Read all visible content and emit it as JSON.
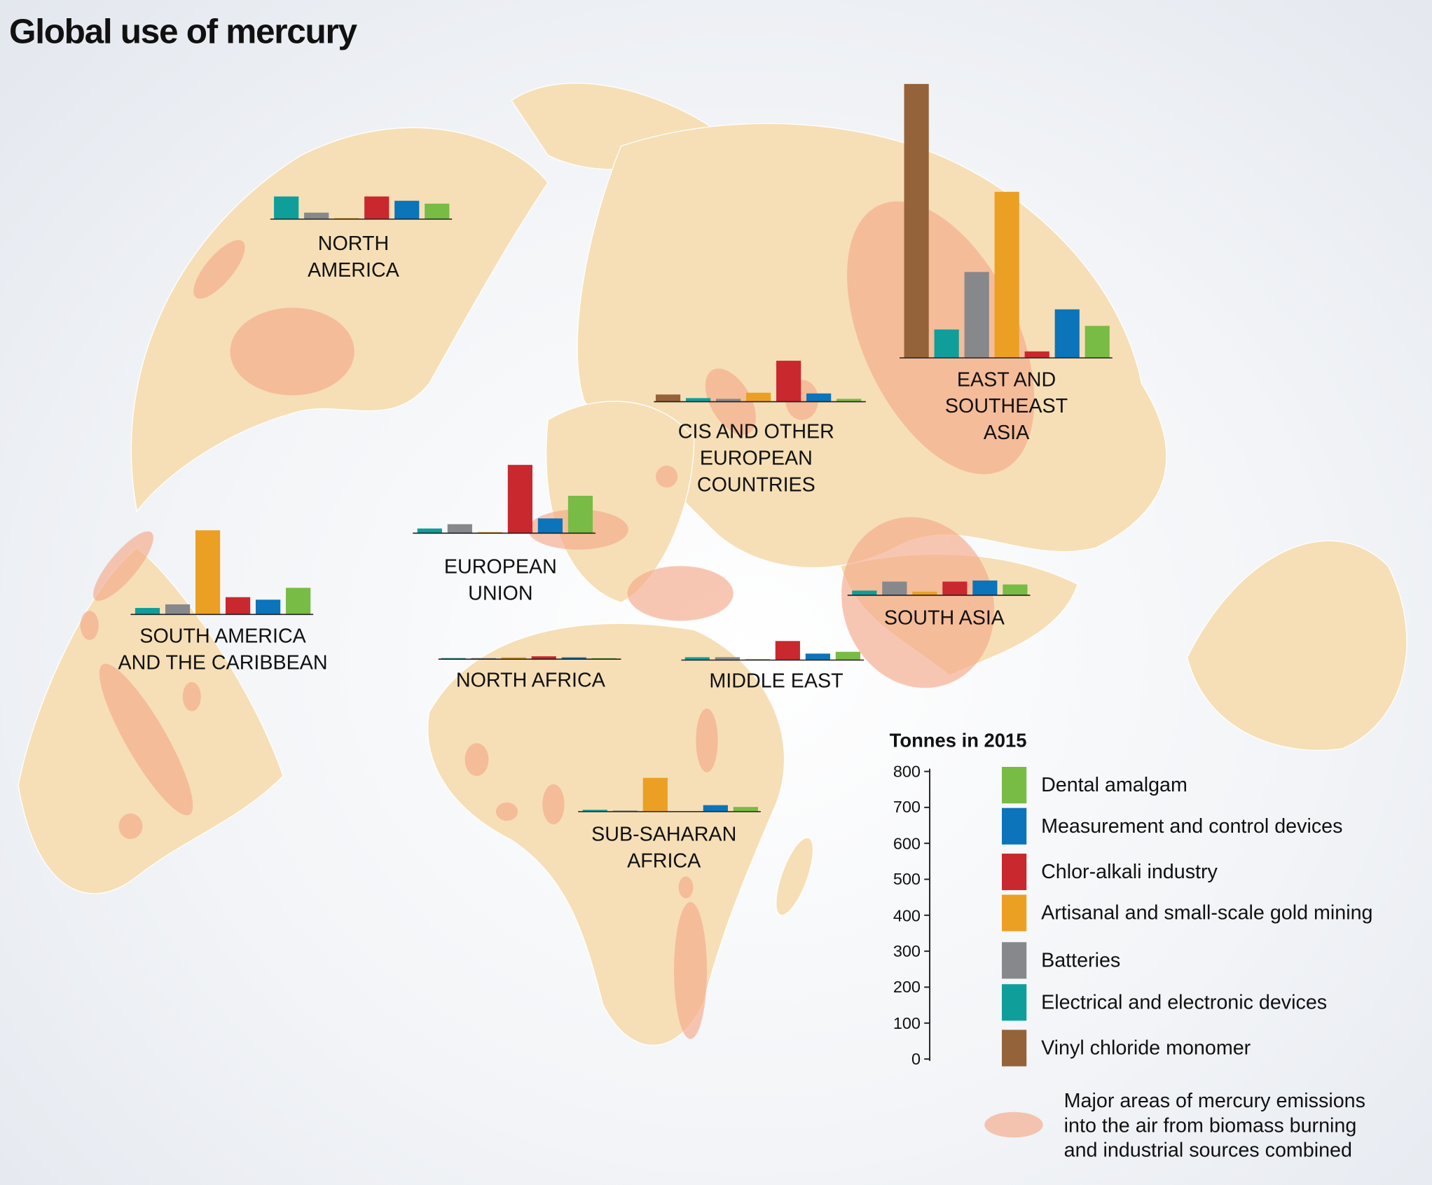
{
  "chart_data": {
    "type": "bar",
    "title": "Global use of mercury",
    "y_label": "Tonnes in 2015",
    "ylim": [
      0,
      800
    ],
    "yticks": [
      0,
      100,
      200,
      300,
      400,
      500,
      600,
      700,
      800
    ],
    "categories": [
      "NORTH\nAMERICA",
      "SOUTH AMERICA\nAND THE CARIBBEAN",
      "EUROPEAN\nUNION",
      "CIS AND OTHER\nEUROPEAN\nCOUNTRIES",
      "NORTH AFRICA",
      "SUB-SAHARAN\nAFRICA",
      "MIDDLE EAST",
      "SOUTH ASIA",
      "EAST AND\nSOUTHEAST\nASIA"
    ],
    "series": [
      {
        "name": "Vinyl chloride monomer",
        "color": "#94633a",
        "values": [
          null,
          null,
          null,
          20,
          null,
          null,
          null,
          null,
          762
        ]
      },
      {
        "name": "Electrical and electronic devices",
        "color": "#0f9e9a",
        "values": [
          63,
          18,
          13,
          10,
          3,
          5,
          8,
          13,
          79
        ]
      },
      {
        "name": "Batteries",
        "color": "#87888b",
        "values": [
          18,
          28,
          25,
          8,
          3,
          3,
          8,
          38,
          239
        ]
      },
      {
        "name": "Artisanal and small-scale gold mining",
        "color": "#eba024",
        "values": [
          3,
          234,
          3,
          25,
          5,
          94,
          3,
          10,
          462
        ]
      },
      {
        "name": "Chlor-alkali industry",
        "color": "#c8282e",
        "values": [
          63,
          48,
          190,
          114,
          8,
          0,
          53,
          38,
          18
        ]
      },
      {
        "name": "Measurement and control devices",
        "color": "#0b74ba",
        "values": [
          51,
          41,
          41,
          23,
          5,
          18,
          18,
          41,
          135
        ]
      },
      {
        "name": "Dental amalgam",
        "color": "#78bb45",
        "values": [
          43,
          74,
          104,
          8,
          3,
          13,
          23,
          30,
          89
        ]
      }
    ],
    "emission_legend": "Major areas of mercury emissions\ninto the air from biomass burning\nand industrial sources combined"
  }
}
